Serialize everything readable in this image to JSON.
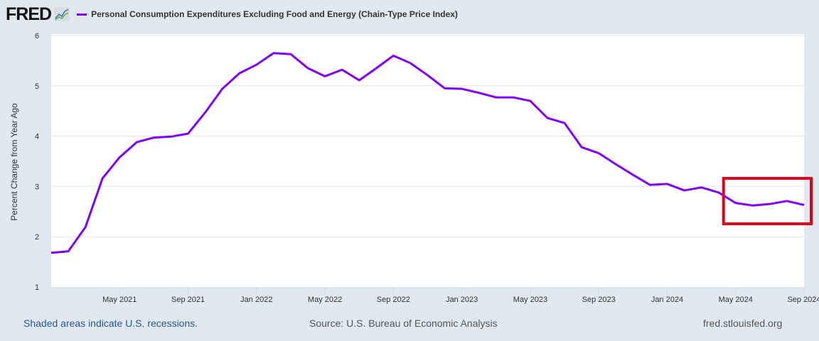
{
  "header": {
    "logo": "FRED",
    "series_title": "Personal Consumption Expenditures Excluding Food and Energy (Chain-Type Price Index)"
  },
  "colors": {
    "series": "#8000ff",
    "highlight_box": "#e0001b",
    "background": "#e1e9f0"
  },
  "footer": {
    "recession_note": "Shaded areas indicate U.S. recessions.",
    "source": "Source: U.S. Bureau of Economic Analysis",
    "site": "fred.stlouisfed.org"
  },
  "chart_data": {
    "type": "line",
    "title": "Personal Consumption Expenditures Excluding Food and Energy (Chain-Type Price Index)",
    "ylabel": "Percent Change from Year Ago",
    "xlabel": "",
    "ylim": [
      1,
      6
    ],
    "yticks": [
      "1",
      "2",
      "3",
      "4",
      "5",
      "6"
    ],
    "xticks": [
      {
        "label": "May 2021",
        "index": 4
      },
      {
        "label": "Sep 2021",
        "index": 8
      },
      {
        "label": "Jan 2022",
        "index": 12
      },
      {
        "label": "May 2022",
        "index": 16
      },
      {
        "label": "Sep 2022",
        "index": 20
      },
      {
        "label": "Jan 2023",
        "index": 24
      },
      {
        "label": "May 2023",
        "index": 28
      },
      {
        "label": "Sep 2023",
        "index": 32
      },
      {
        "label": "Jan 2024",
        "index": 36
      },
      {
        "label": "May 2024",
        "index": 40
      },
      {
        "label": "Sep 2024",
        "index": 44
      }
    ],
    "x_start": "2021-01",
    "x_end": "2024-09",
    "grid": true,
    "series": [
      {
        "name": "Personal Consumption Expenditures Excluding Food and Energy (Chain-Type Price Index)",
        "values": [
          1.68,
          1.71,
          2.19,
          3.16,
          3.58,
          3.88,
          3.97,
          3.99,
          4.05,
          4.47,
          4.94,
          5.25,
          5.42,
          5.65,
          5.63,
          5.35,
          5.19,
          5.32,
          5.11,
          5.35,
          5.6,
          5.45,
          5.21,
          4.95,
          4.94,
          4.86,
          4.77,
          4.77,
          4.7,
          4.36,
          4.26,
          3.78,
          3.66,
          3.44,
          3.23,
          3.03,
          3.05,
          2.92,
          2.98,
          2.88,
          2.67,
          2.62,
          2.65,
          2.71,
          2.63
        ]
      }
    ],
    "annotations": [
      {
        "type": "highlight-box",
        "from_index": 40,
        "to_index": 44
      }
    ]
  }
}
